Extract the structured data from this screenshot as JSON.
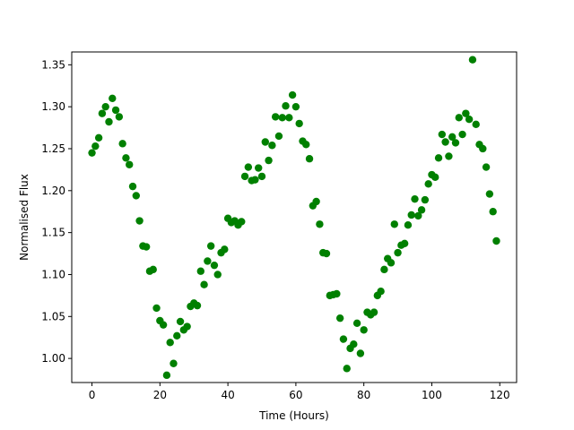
{
  "chart_data": {
    "type": "scatter",
    "title": "",
    "xlabel": "Time (Hours)",
    "ylabel": "Normalised Flux",
    "xlim": [
      -5.95,
      124.95
    ],
    "ylim": [
      0.9713,
      1.3653
    ],
    "xticks": [
      0,
      20,
      40,
      60,
      80,
      100,
      120
    ],
    "xtick_labels": [
      "0",
      "20",
      "40",
      "60",
      "80",
      "100",
      "120"
    ],
    "yticks": [
      1.0,
      1.05,
      1.1,
      1.15,
      1.2,
      1.25,
      1.3,
      1.35
    ],
    "ytick_labels": [
      "1.00",
      "1.05",
      "1.10",
      "1.15",
      "1.20",
      "1.25",
      "1.30",
      "1.35"
    ],
    "grid": false,
    "marker_color": "#008000",
    "series": [
      {
        "x": [
          0,
          1,
          2,
          3,
          4,
          5,
          6,
          7,
          8,
          9,
          10,
          11,
          12,
          13,
          14,
          15,
          16,
          17,
          18,
          19,
          20,
          21,
          22,
          23,
          24,
          25,
          26,
          27,
          28,
          29,
          30,
          31,
          32,
          33,
          34,
          35,
          36,
          37,
          38,
          39,
          40,
          41,
          42,
          43,
          44,
          45,
          46,
          47,
          48,
          49,
          50,
          51,
          52,
          53,
          54,
          55,
          56,
          57,
          58,
          59,
          60,
          61,
          62,
          63,
          64,
          65,
          66,
          67,
          68,
          69,
          70,
          71,
          72,
          73,
          74,
          75,
          76,
          77,
          78,
          79,
          80,
          81,
          82,
          83,
          84,
          85,
          86,
          87,
          88,
          89,
          90,
          91,
          92,
          93,
          94,
          95,
          96,
          97,
          98,
          99,
          100,
          101,
          102,
          103,
          104,
          105,
          106,
          107,
          108,
          109,
          110,
          111,
          112,
          113,
          114,
          115,
          116,
          117,
          118,
          119
        ],
        "y": [
          1.245,
          1.253,
          1.263,
          1.292,
          1.3,
          1.282,
          1.31,
          1.296,
          1.288,
          1.256,
          1.239,
          1.231,
          1.205,
          1.194,
          1.164,
          1.134,
          1.133,
          1.104,
          1.106,
          1.06,
          1.045,
          1.04,
          0.98,
          1.019,
          0.994,
          1.027,
          1.044,
          1.034,
          1.038,
          1.062,
          1.066,
          1.063,
          1.104,
          1.088,
          1.116,
          1.134,
          1.111,
          1.1,
          1.126,
          1.13,
          1.167,
          1.162,
          1.164,
          1.159,
          1.163,
          1.217,
          1.228,
          1.212,
          1.213,
          1.227,
          1.217,
          1.258,
          1.236,
          1.254,
          1.288,
          1.265,
          1.287,
          1.301,
          1.287,
          1.314,
          1.3,
          1.28,
          1.259,
          1.255,
          1.238,
          1.182,
          1.187,
          1.16,
          1.126,
          1.125,
          1.075,
          1.076,
          1.077,
          1.048,
          1.023,
          0.988,
          1.012,
          1.017,
          1.042,
          1.006,
          1.034,
          1.055,
          1.052,
          1.055,
          1.075,
          1.08,
          1.106,
          1.119,
          1.114,
          1.16,
          1.126,
          1.135,
          1.137,
          1.159,
          1.171,
          1.19,
          1.17,
          1.177,
          1.189,
          1.208,
          1.219,
          1.216,
          1.239,
          1.267,
          1.258,
          1.241,
          1.264,
          1.257,
          1.287,
          1.267,
          1.292,
          1.285,
          1.356,
          1.279,
          1.255,
          1.25,
          1.228,
          1.196,
          1.175,
          1.14
        ]
      }
    ]
  }
}
